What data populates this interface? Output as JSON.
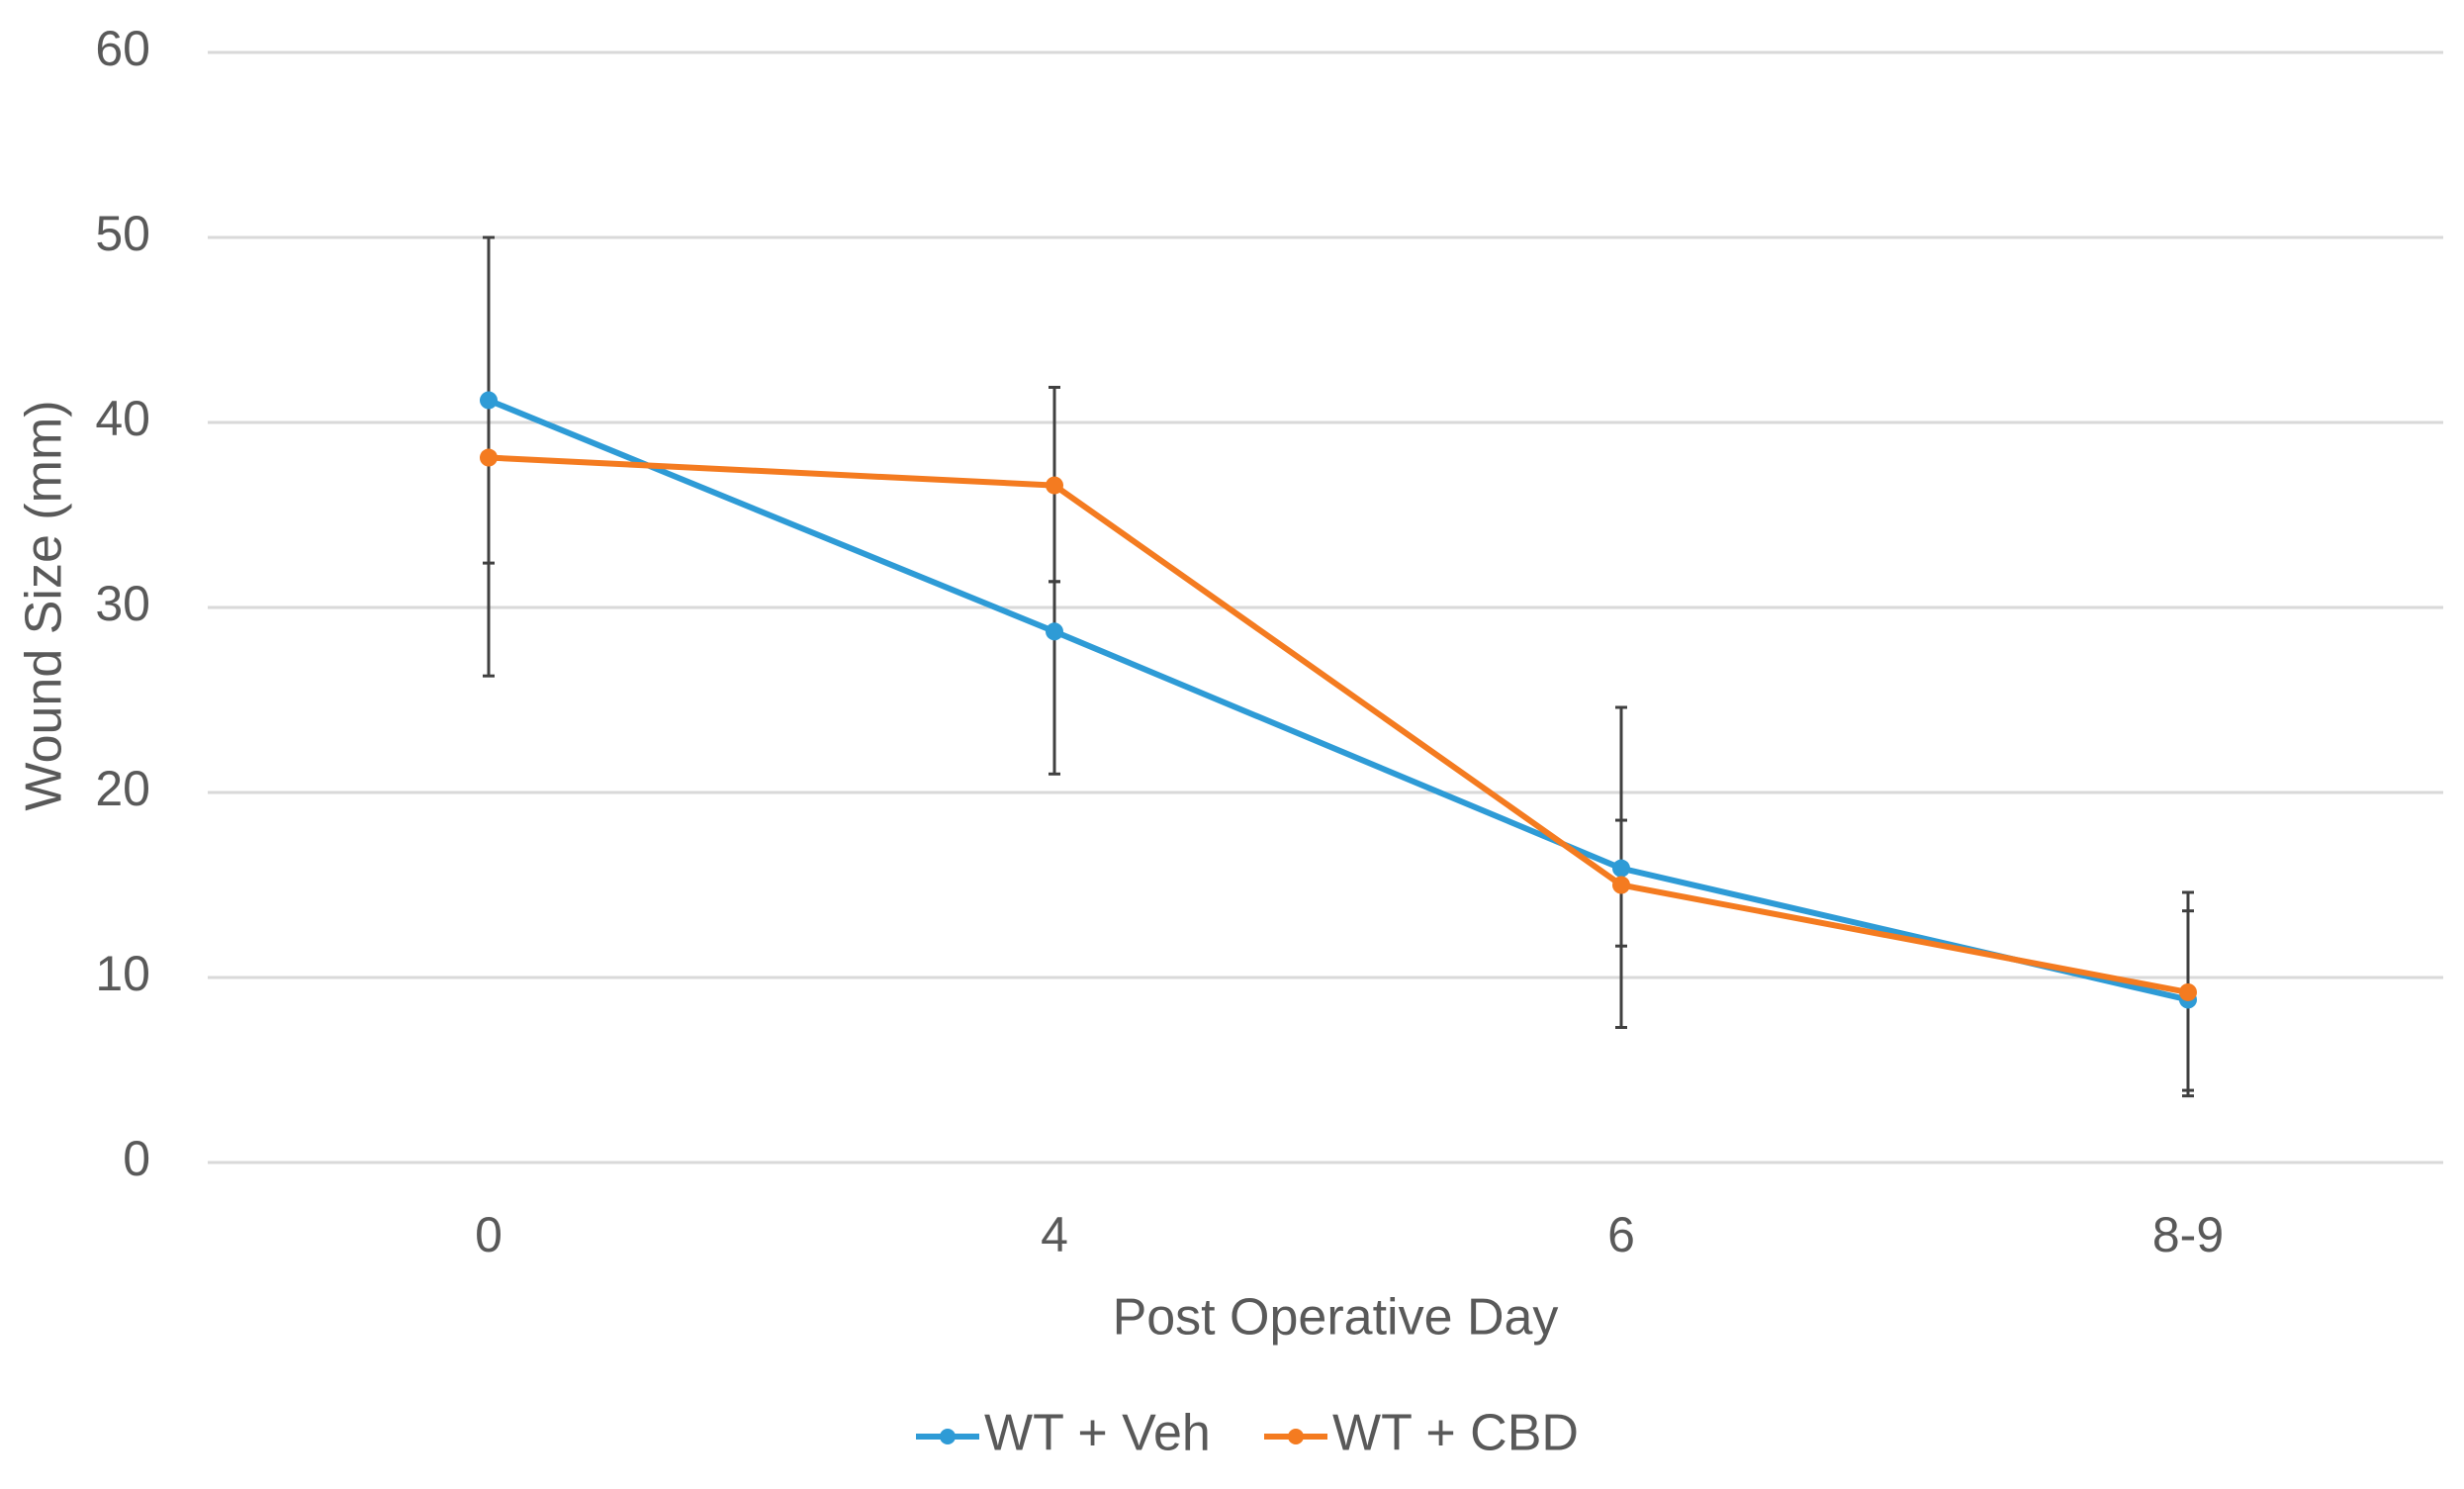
{
  "chart_data": {
    "type": "line",
    "title": "",
    "xlabel": "Post Operative Day",
    "ylabel": "Wound Size (mm)",
    "categories": [
      "0",
      "4",
      "6",
      "8-9"
    ],
    "ylim": [
      0,
      60
    ],
    "yticks": [
      0,
      10,
      20,
      30,
      40,
      50,
      60
    ],
    "yticklabels": [
      "0",
      "10",
      "20",
      "30",
      "40",
      "50",
      "60"
    ],
    "grid": true,
    "legend_position": "bottom-center",
    "series": [
      {
        "name": "WT + Veh",
        "color": "#2e9bd6",
        "values": [
          41.2,
          28.7,
          15.9,
          8.8
        ],
        "error_low": [
          26.3,
          21.0,
          7.3,
          3.6
        ],
        "error_high": [
          50.0,
          31.4,
          24.6,
          13.6
        ]
      },
      {
        "name": "WT + CBD",
        "color": "#f47b20",
        "values": [
          38.1,
          36.6,
          15.0,
          9.2
        ],
        "error_low": [
          32.4,
          31.4,
          11.7,
          3.9
        ],
        "error_high": [
          50.0,
          41.9,
          18.5,
          14.6
        ]
      }
    ]
  }
}
